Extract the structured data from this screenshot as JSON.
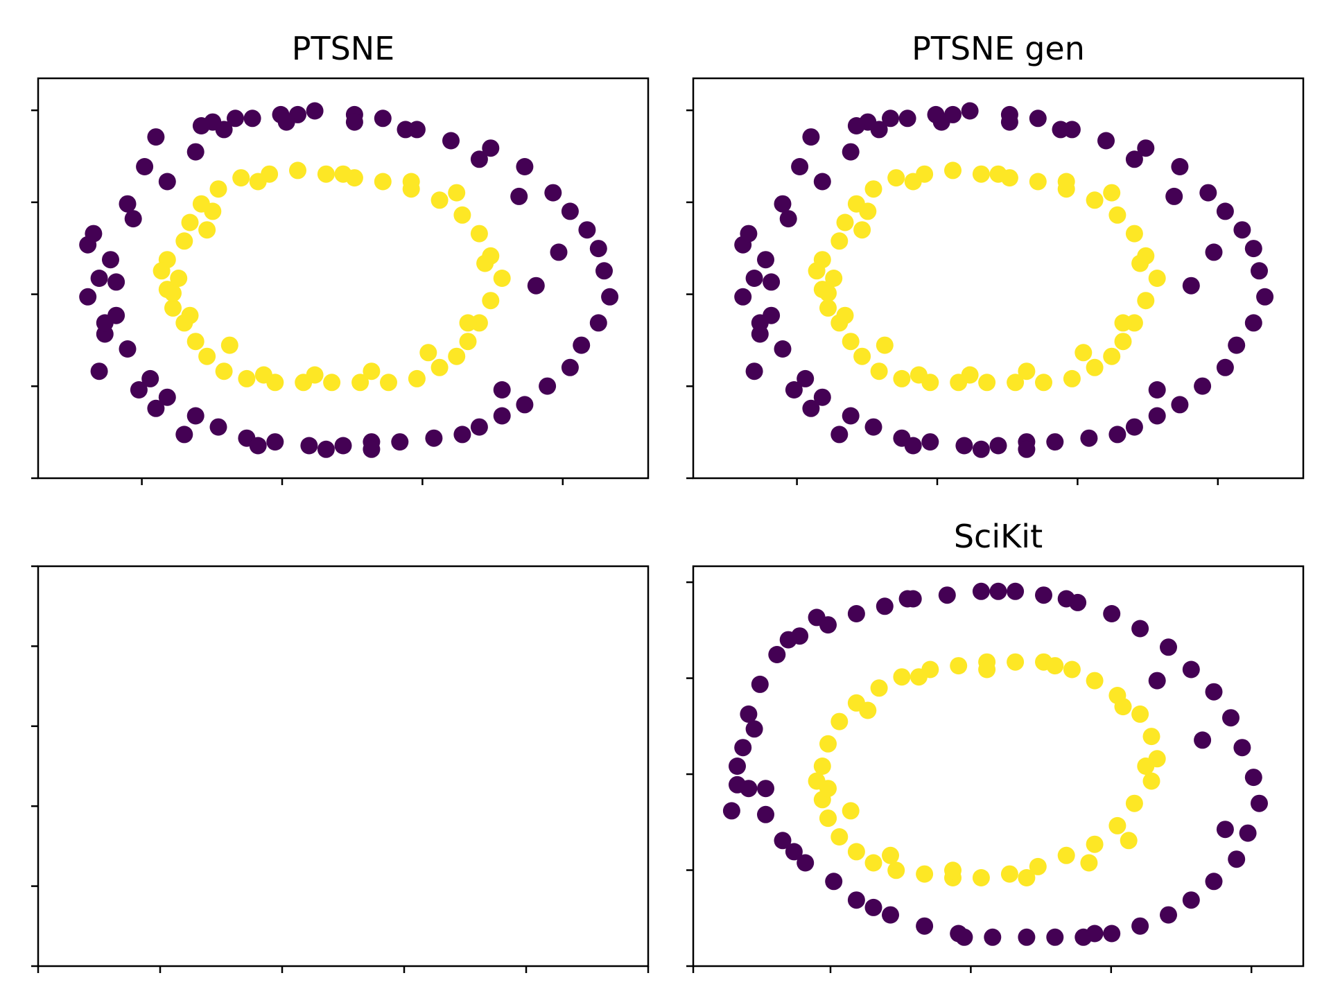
{
  "figure": {
    "background": "#ffffff"
  },
  "colors": {
    "outer": "#440154",
    "inner": "#fde725"
  },
  "chart_data": [
    {
      "type": "scatter",
      "title": "PTSNE",
      "xlim": [
        0,
        1
      ],
      "ylim": [
        0,
        1
      ],
      "grid": false,
      "xticks": [
        0.17,
        0.4,
        0.63,
        0.86
      ],
      "yticks": [
        0.0,
        0.23,
        0.46,
        0.69,
        0.92
      ],
      "tick_labels_visible": false,
      "series": [
        {
          "class": "outer",
          "color": "#440154",
          "x": [
            0.07,
            0.08,
            0.05,
            0.09,
            0.13,
            0.19,
            0.24,
            0.29,
            0.34,
            0.39,
            0.45,
            0.52,
            0.57,
            0.63,
            0.69,
            0.76,
            0.82,
            0.87,
            0.9,
            0.93,
            0.95,
            0.96,
            0.97,
            0.95,
            0.92,
            0.9,
            0.86,
            0.82,
            0.78,
            0.74,
            0.71,
            0.66,
            0.6,
            0.55,
            0.5,
            0.44,
            0.38,
            0.33,
            0.28,
            0.24,
            0.19,
            0.16,
            0.12,
            0.1,
            0.07,
            0.05,
            0.06,
            0.12,
            0.15,
            0.17,
            0.27,
            0.31,
            0.42,
            0.52,
            0.61,
            0.74,
            0.81,
            0.88,
            0.84,
            0.78,
            0.55,
            0.47,
            0.35,
            0.22,
            0.14,
            0.17,
            0.08,
            0.1,
            0.25,
            0.4
          ],
          "y": [
            0.25,
            0.35,
            0.45,
            0.55,
            0.66,
            0.76,
            0.84,
            0.9,
            0.93,
            0.94,
            0.95,
            0.94,
            0.93,
            0.9,
            0.87,
            0.85,
            0.8,
            0.73,
            0.68,
            0.63,
            0.58,
            0.52,
            0.45,
            0.38,
            0.32,
            0.26,
            0.21,
            0.16,
            0.13,
            0.1,
            0.08,
            0.07,
            0.06,
            0.06,
            0.05,
            0.05,
            0.06,
            0.07,
            0.1,
            0.13,
            0.18,
            0.23,
            0.31,
            0.4,
            0.5,
            0.59,
            0.62,
            0.7,
            0.8,
            0.88,
            0.92,
            0.93,
            0.94,
            0.92,
            0.9,
            0.82,
            0.72,
            0.57,
            0.48,
            0.2,
            0.04,
            0.04,
            0.05,
            0.08,
            0.2,
            0.15,
            0.38,
            0.49,
            0.91,
            0.92
          ]
        },
        {
          "class": "inner",
          "color": "#fde725",
          "x": [
            0.19,
            0.22,
            0.23,
            0.25,
            0.28,
            0.32,
            0.37,
            0.42,
            0.47,
            0.52,
            0.57,
            0.62,
            0.67,
            0.71,
            0.74,
            0.76,
            0.78,
            0.76,
            0.74,
            0.72,
            0.7,
            0.67,
            0.63,
            0.58,
            0.53,
            0.48,
            0.43,
            0.38,
            0.33,
            0.29,
            0.26,
            0.24,
            0.22,
            0.2,
            0.19,
            0.18,
            0.2,
            0.23,
            0.3,
            0.36,
            0.45,
            0.55,
            0.65,
            0.72,
            0.75,
            0.7,
            0.62,
            0.5,
            0.35,
            0.26,
            0.27,
            0.21
          ],
          "y": [
            0.55,
            0.6,
            0.65,
            0.7,
            0.74,
            0.77,
            0.78,
            0.79,
            0.78,
            0.77,
            0.76,
            0.74,
            0.71,
            0.67,
            0.62,
            0.56,
            0.5,
            0.44,
            0.38,
            0.33,
            0.29,
            0.26,
            0.23,
            0.22,
            0.22,
            0.22,
            0.22,
            0.22,
            0.23,
            0.25,
            0.29,
            0.33,
            0.38,
            0.42,
            0.47,
            0.52,
            0.46,
            0.4,
            0.32,
            0.24,
            0.24,
            0.25,
            0.3,
            0.38,
            0.54,
            0.73,
            0.76,
            0.78,
            0.76,
            0.63,
            0.68,
            0.5
          ]
        }
      ]
    },
    {
      "type": "scatter",
      "title": "PTSNE gen",
      "xlim": [
        0,
        1
      ],
      "ylim": [
        0,
        1
      ],
      "grid": false,
      "xticks": [
        0.17,
        0.4,
        0.63,
        0.86
      ],
      "yticks": [
        0.0,
        0.23,
        0.46,
        0.69,
        0.92
      ],
      "tick_labels_visible": false,
      "series": [
        {
          "class": "outer",
          "color": "#440154",
          "x": [
            0.07,
            0.08,
            0.05,
            0.09,
            0.13,
            0.19,
            0.24,
            0.29,
            0.34,
            0.39,
            0.45,
            0.52,
            0.57,
            0.63,
            0.69,
            0.76,
            0.82,
            0.87,
            0.9,
            0.93,
            0.95,
            0.96,
            0.97,
            0.95,
            0.92,
            0.9,
            0.86,
            0.82,
            0.78,
            0.74,
            0.71,
            0.66,
            0.6,
            0.55,
            0.5,
            0.44,
            0.38,
            0.33,
            0.28,
            0.24,
            0.19,
            0.16,
            0.12,
            0.1,
            0.07,
            0.05,
            0.06,
            0.12,
            0.15,
            0.17,
            0.27,
            0.31,
            0.42,
            0.52,
            0.61,
            0.74,
            0.81,
            0.88,
            0.84,
            0.78,
            0.55,
            0.47,
            0.35,
            0.22,
            0.14,
            0.17,
            0.08,
            0.1,
            0.25,
            0.4
          ],
          "y": [
            0.25,
            0.35,
            0.45,
            0.55,
            0.66,
            0.76,
            0.84,
            0.9,
            0.93,
            0.94,
            0.95,
            0.94,
            0.93,
            0.9,
            0.87,
            0.85,
            0.8,
            0.73,
            0.68,
            0.63,
            0.58,
            0.52,
            0.45,
            0.38,
            0.32,
            0.26,
            0.21,
            0.16,
            0.13,
            0.1,
            0.08,
            0.07,
            0.06,
            0.06,
            0.05,
            0.05,
            0.06,
            0.07,
            0.1,
            0.13,
            0.18,
            0.23,
            0.31,
            0.4,
            0.5,
            0.59,
            0.62,
            0.7,
            0.8,
            0.88,
            0.92,
            0.93,
            0.94,
            0.92,
            0.9,
            0.82,
            0.72,
            0.57,
            0.48,
            0.2,
            0.04,
            0.04,
            0.05,
            0.08,
            0.2,
            0.15,
            0.38,
            0.49,
            0.91,
            0.92
          ]
        },
        {
          "class": "inner",
          "color": "#fde725",
          "x": [
            0.19,
            0.22,
            0.23,
            0.25,
            0.28,
            0.32,
            0.37,
            0.42,
            0.47,
            0.52,
            0.57,
            0.62,
            0.67,
            0.71,
            0.74,
            0.76,
            0.78,
            0.76,
            0.74,
            0.72,
            0.7,
            0.67,
            0.63,
            0.58,
            0.53,
            0.48,
            0.43,
            0.38,
            0.33,
            0.29,
            0.26,
            0.24,
            0.22,
            0.2,
            0.19,
            0.18,
            0.2,
            0.23,
            0.3,
            0.36,
            0.45,
            0.55,
            0.65,
            0.72,
            0.75,
            0.7,
            0.62,
            0.5,
            0.35,
            0.26,
            0.27,
            0.21
          ],
          "y": [
            0.55,
            0.6,
            0.65,
            0.7,
            0.74,
            0.77,
            0.78,
            0.79,
            0.78,
            0.77,
            0.76,
            0.74,
            0.71,
            0.67,
            0.62,
            0.56,
            0.5,
            0.44,
            0.38,
            0.33,
            0.29,
            0.26,
            0.23,
            0.22,
            0.22,
            0.22,
            0.22,
            0.22,
            0.23,
            0.25,
            0.29,
            0.33,
            0.38,
            0.42,
            0.47,
            0.52,
            0.46,
            0.4,
            0.32,
            0.24,
            0.24,
            0.25,
            0.3,
            0.38,
            0.54,
            0.73,
            0.76,
            0.78,
            0.76,
            0.63,
            0.68,
            0.5
          ]
        }
      ]
    },
    {
      "type": "scatter",
      "title": "",
      "xlim": [
        0,
        1
      ],
      "ylim": [
        0,
        1
      ],
      "grid": false,
      "xticks": [
        0.0,
        0.2,
        0.4,
        0.6,
        0.8,
        1.0
      ],
      "yticks": [
        0.0,
        0.2,
        0.4,
        0.6,
        0.8,
        1.0
      ],
      "tick_labels_visible": false,
      "series": []
    },
    {
      "type": "scatter",
      "title": "SciKit",
      "xlim": [
        0,
        1
      ],
      "ylim": [
        0,
        1
      ],
      "grid": false,
      "xticks": [
        0.0,
        0.225,
        0.455,
        0.685,
        0.915
      ],
      "yticks": [
        0.0,
        0.24,
        0.48,
        0.72,
        0.96
      ],
      "tick_labels_visible": false,
      "series": [
        {
          "class": "outer",
          "color": "#440154",
          "x": [
            0.04,
            0.05,
            0.06,
            0.08,
            0.11,
            0.15,
            0.2,
            0.25,
            0.3,
            0.35,
            0.41,
            0.47,
            0.53,
            0.58,
            0.64,
            0.7,
            0.75,
            0.8,
            0.84,
            0.88,
            0.91,
            0.93,
            0.95,
            0.96,
            0.94,
            0.92,
            0.88,
            0.84,
            0.8,
            0.75,
            0.7,
            0.65,
            0.6,
            0.55,
            0.49,
            0.43,
            0.37,
            0.31,
            0.25,
            0.21,
            0.16,
            0.12,
            0.09,
            0.06,
            0.04,
            0.03,
            0.07,
            0.13,
            0.18,
            0.34,
            0.5,
            0.62,
            0.78,
            0.86,
            0.9,
            0.67,
            0.44,
            0.28,
            0.14,
            0.09
          ],
          "y": [
            0.45,
            0.55,
            0.64,
            0.72,
            0.8,
            0.85,
            0.88,
            0.91,
            0.93,
            0.95,
            0.96,
            0.97,
            0.97,
            0.96,
            0.94,
            0.91,
            0.87,
            0.82,
            0.76,
            0.7,
            0.63,
            0.55,
            0.47,
            0.4,
            0.32,
            0.25,
            0.19,
            0.14,
            0.1,
            0.07,
            0.05,
            0.04,
            0.04,
            0.04,
            0.04,
            0.05,
            0.07,
            0.1,
            0.14,
            0.19,
            0.24,
            0.3,
            0.37,
            0.44,
            0.5,
            0.38,
            0.6,
            0.84,
            0.9,
            0.95,
            0.97,
            0.95,
            0.73,
            0.57,
            0.33,
            0.05,
            0.04,
            0.12,
            0.27,
            0.44
          ]
        },
        {
          "class": "inner",
          "color": "#fde725",
          "x": [
            0.19,
            0.2,
            0.22,
            0.25,
            0.29,
            0.33,
            0.38,
            0.43,
            0.48,
            0.53,
            0.58,
            0.63,
            0.67,
            0.71,
            0.75,
            0.77,
            0.78,
            0.77,
            0.74,
            0.71,
            0.67,
            0.62,
            0.57,
            0.52,
            0.47,
            0.42,
            0.37,
            0.32,
            0.28,
            0.25,
            0.22,
            0.2,
            0.19,
            0.18,
            0.2,
            0.24,
            0.31,
            0.42,
            0.55,
            0.66,
            0.73,
            0.76,
            0.72,
            0.6,
            0.48,
            0.36,
            0.27,
            0.2
          ],
          "y": [
            0.5,
            0.56,
            0.62,
            0.67,
            0.71,
            0.74,
            0.76,
            0.77,
            0.78,
            0.78,
            0.78,
            0.76,
            0.73,
            0.69,
            0.64,
            0.58,
            0.52,
            0.46,
            0.4,
            0.34,
            0.29,
            0.26,
            0.23,
            0.21,
            0.2,
            0.2,
            0.21,
            0.22,
            0.24,
            0.27,
            0.31,
            0.36,
            0.41,
            0.46,
            0.44,
            0.38,
            0.26,
            0.22,
            0.2,
            0.24,
            0.3,
            0.5,
            0.66,
            0.77,
            0.76,
            0.74,
            0.65,
            0.36
          ]
        }
      ]
    }
  ]
}
